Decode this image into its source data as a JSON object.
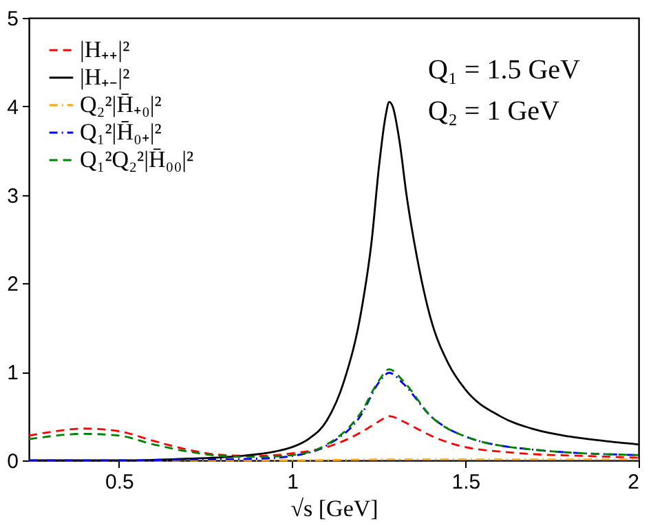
{
  "chart_data": {
    "type": "line",
    "xlabel": "√s [GeV]",
    "xlim": [
      0.24,
      2
    ],
    "xticks": [
      0.5,
      1,
      1.5,
      2
    ],
    "ylim": [
      0,
      5
    ],
    "yticks": [
      0,
      1,
      2,
      3,
      4,
      5
    ],
    "grid": false,
    "legend": "top left",
    "marker": "none",
    "annotations": [
      "Q₁ = 1.5 GeV",
      "Q₂ = 1 GeV"
    ],
    "series": [
      {
        "name": "|H₊₊|²",
        "color": "#ff0000",
        "line_style": "dashed",
        "x": [
          0.24,
          0.3,
          0.4,
          0.5,
          0.6,
          0.7,
          0.8,
          0.9,
          1.0,
          1.1,
          1.2,
          1.25,
          1.28,
          1.32,
          1.35,
          1.4,
          1.5,
          1.6,
          1.7,
          1.85,
          2.0
        ],
        "values": [
          0.28,
          0.32,
          0.36,
          0.33,
          0.22,
          0.12,
          0.06,
          0.05,
          0.08,
          0.15,
          0.32,
          0.44,
          0.5,
          0.44,
          0.38,
          0.28,
          0.15,
          0.1,
          0.07,
          0.05,
          0.03
        ]
      },
      {
        "name": "|H₊₋|²",
        "color": "#000000",
        "line_style": "solid",
        "x": [
          0.24,
          0.5,
          0.7,
          0.85,
          0.95,
          1.0,
          1.05,
          1.1,
          1.15,
          1.2,
          1.23,
          1.25,
          1.27,
          1.28,
          1.29,
          1.31,
          1.33,
          1.36,
          1.4,
          1.45,
          1.5,
          1.6,
          1.7,
          1.8,
          1.9,
          2.0
        ],
        "values": [
          0,
          0,
          0.02,
          0.05,
          0.1,
          0.15,
          0.25,
          0.45,
          0.9,
          1.7,
          2.5,
          3.3,
          3.9,
          4.05,
          4.0,
          3.6,
          3.0,
          2.3,
          1.6,
          1.1,
          0.8,
          0.5,
          0.35,
          0.27,
          0.22,
          0.18
        ]
      },
      {
        "name": "Q₂²|H̄₊₀|²",
        "color": "#ffa500",
        "line_style": "dashdot",
        "x": [
          0.24,
          1.0,
          1.28,
          2.0
        ],
        "values": [
          0,
          0,
          0.01,
          0.01
        ]
      },
      {
        "name": "Q₁²|H̄₀₊|²",
        "color": "#0000ff",
        "line_style": "dashdot",
        "x": [
          0.24,
          0.5,
          0.7,
          0.9,
          1.0,
          1.1,
          1.2,
          1.25,
          1.28,
          1.32,
          1.4,
          1.5,
          1.7,
          2.0
        ],
        "values": [
          0,
          0,
          0.01,
          0.02,
          0.05,
          0.17,
          0.52,
          0.88,
          0.99,
          0.87,
          0.5,
          0.27,
          0.12,
          0.06
        ]
      },
      {
        "name": "Q₁²Q₂²|H̄₀₀|²",
        "color": "#008000",
        "line_style": "dashed",
        "x": [
          0.24,
          0.4,
          0.5,
          0.6,
          0.7,
          0.8,
          0.9,
          1.0,
          1.1,
          1.2,
          1.25,
          1.28,
          1.32,
          1.4,
          1.5,
          1.7,
          2.0
        ],
        "values": [
          0.24,
          0.3,
          0.28,
          0.18,
          0.1,
          0.05,
          0.04,
          0.06,
          0.18,
          0.55,
          0.9,
          1.03,
          0.9,
          0.5,
          0.27,
          0.12,
          0.06
        ]
      }
    ]
  }
}
